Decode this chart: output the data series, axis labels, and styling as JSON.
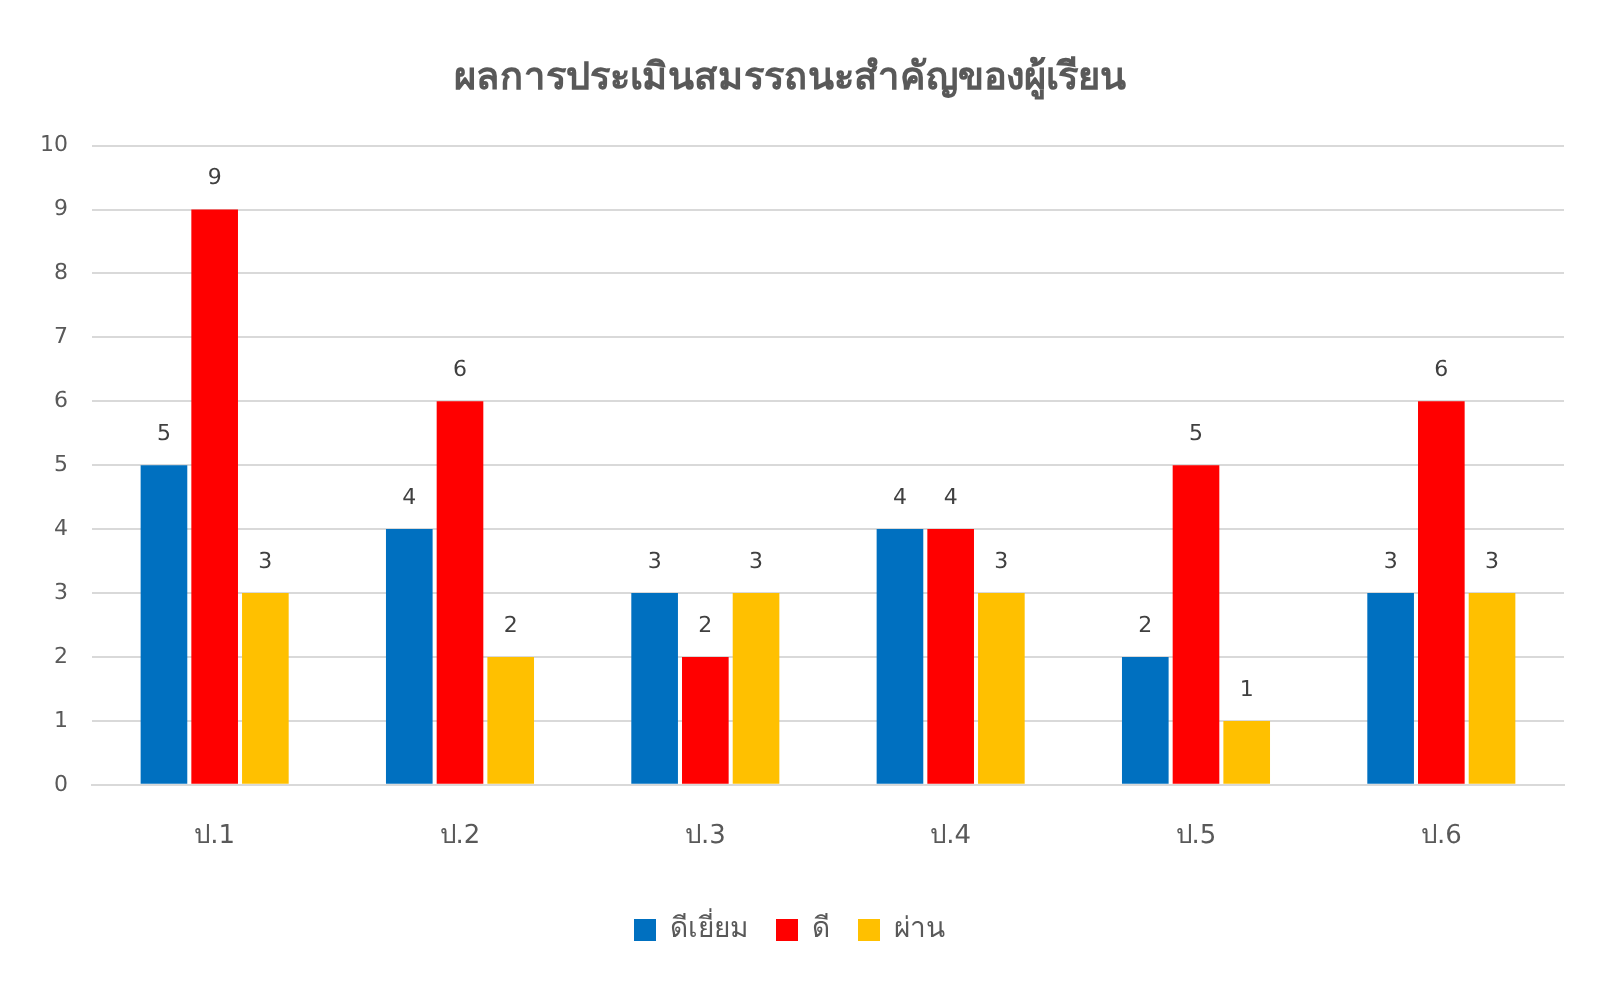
{
  "chart_data": {
    "type": "bar",
    "title": "ผลการประเมินสมรรถนะสำคัญของผู้เรียน",
    "categories": [
      "ป.1",
      "ป.2",
      "ป.3",
      "ป.4",
      "ป.5",
      "ป.6"
    ],
    "series": [
      {
        "name": "ดีเยี่ยม",
        "color": "#0070c0",
        "values": [
          5,
          4,
          3,
          4,
          2,
          3
        ]
      },
      {
        "name": "ดี",
        "color": "#ff0000",
        "values": [
          9,
          6,
          2,
          4,
          5,
          6
        ]
      },
      {
        "name": "ผ่าน",
        "color": "#ffc000",
        "values": [
          3,
          2,
          3,
          3,
          1,
          3
        ]
      }
    ],
    "ylim": [
      0,
      10
    ],
    "yticks": [
      0,
      1,
      2,
      3,
      4,
      5,
      6,
      7,
      8,
      9,
      10
    ],
    "grid": "y",
    "legend": "bottom",
    "data_labels": true
  }
}
